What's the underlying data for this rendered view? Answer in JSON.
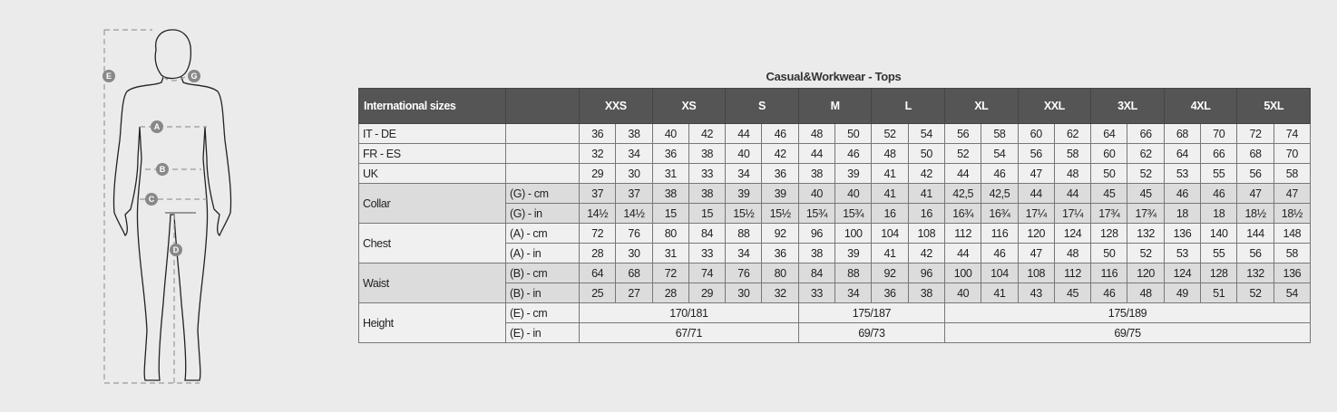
{
  "title": "Casual&Workwear - Tops",
  "figure": {
    "markers": [
      "A",
      "B",
      "C",
      "D",
      "E",
      "G"
    ]
  },
  "header": {
    "label": "International sizes",
    "sizes": [
      "XXS",
      "XS",
      "S",
      "M",
      "L",
      "XL",
      "XXL",
      "3XL",
      "4XL",
      "5XL"
    ]
  },
  "rows": [
    {
      "label": "IT - DE",
      "sub": "",
      "values": [
        "36",
        "38",
        "40",
        "42",
        "44",
        "46",
        "48",
        "50",
        "52",
        "54",
        "56",
        "58",
        "60",
        "62",
        "64",
        "66",
        "68",
        "70",
        "72",
        "74"
      ]
    },
    {
      "label": "FR - ES",
      "sub": "",
      "values": [
        "32",
        "34",
        "36",
        "38",
        "40",
        "42",
        "44",
        "46",
        "48",
        "50",
        "52",
        "54",
        "56",
        "58",
        "60",
        "62",
        "64",
        "66",
        "68",
        "70"
      ]
    },
    {
      "label": "UK",
      "sub": "",
      "values": [
        "29",
        "30",
        "31",
        "33",
        "34",
        "36",
        "38",
        "39",
        "41",
        "42",
        "44",
        "46",
        "47",
        "48",
        "50",
        "52",
        "53",
        "55",
        "56",
        "58"
      ]
    }
  ],
  "groups": [
    {
      "label": "Collar",
      "shade": true,
      "rows": [
        {
          "sub": "(G) - cm",
          "values": [
            "37",
            "37",
            "38",
            "38",
            "39",
            "39",
            "40",
            "40",
            "41",
            "41",
            "42,5",
            "42,5",
            "44",
            "44",
            "45",
            "45",
            "46",
            "46",
            "47",
            "47"
          ]
        },
        {
          "sub": "(G)  - in",
          "values": [
            "14½",
            "14½",
            "15",
            "15",
            "15½",
            "15½",
            "15¾",
            "15¾",
            "16",
            "16",
            "16¾",
            "16¾",
            "17¼",
            "17¼",
            "17¾",
            "17¾",
            "18",
            "18",
            "18½",
            "18½"
          ]
        }
      ]
    },
    {
      "label": "Chest",
      "shade": false,
      "rows": [
        {
          "sub": "(A) - cm",
          "values": [
            "72",
            "76",
            "80",
            "84",
            "88",
            "92",
            "96",
            "100",
            "104",
            "108",
            "112",
            "116",
            "120",
            "124",
            "128",
            "132",
            "136",
            "140",
            "144",
            "148"
          ]
        },
        {
          "sub": "(A) - in",
          "values": [
            "28",
            "30",
            "31",
            "33",
            "34",
            "36",
            "38",
            "39",
            "41",
            "42",
            "44",
            "46",
            "47",
            "48",
            "50",
            "52",
            "53",
            "55",
            "56",
            "58"
          ]
        }
      ]
    },
    {
      "label": "Waist",
      "shade": true,
      "rows": [
        {
          "sub": "(B) - cm",
          "values": [
            "64",
            "68",
            "72",
            "74",
            "76",
            "80",
            "84",
            "88",
            "92",
            "96",
            "100",
            "104",
            "108",
            "112",
            "116",
            "120",
            "124",
            "128",
            "132",
            "136"
          ]
        },
        {
          "sub": "(B) - in",
          "values": [
            "25",
            "27",
            "28",
            "29",
            "30",
            "32",
            "33",
            "34",
            "36",
            "38",
            "40",
            "41",
            "43",
            "45",
            "46",
            "48",
            "49",
            "51",
            "52",
            "54"
          ]
        }
      ]
    }
  ],
  "height": {
    "label": "Height",
    "rows": [
      {
        "sub": "(E) - cm",
        "spans": [
          {
            "cols": 6,
            "value": "170/181"
          },
          {
            "cols": 4,
            "value": "175/187"
          },
          {
            "cols": 10,
            "value": "175/189"
          }
        ]
      },
      {
        "sub": "(E) - in",
        "spans": [
          {
            "cols": 6,
            "value": "67/71"
          },
          {
            "cols": 4,
            "value": "69/73"
          },
          {
            "cols": 10,
            "value": "69/75"
          }
        ]
      }
    ]
  }
}
